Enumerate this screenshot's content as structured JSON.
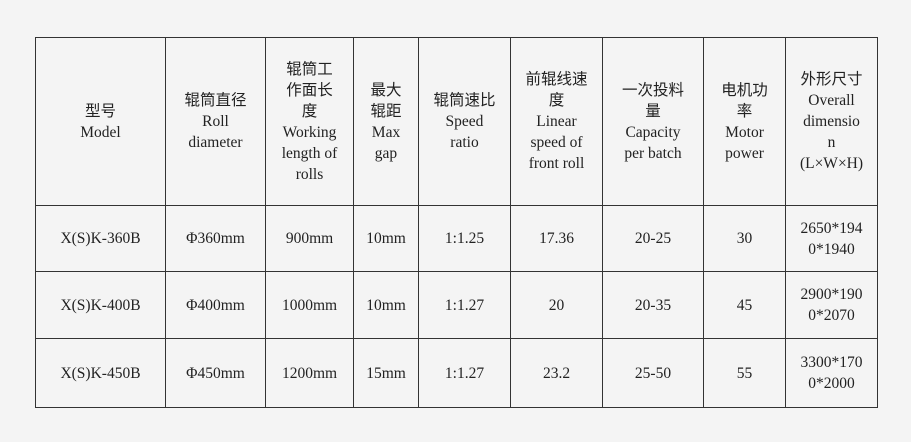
{
  "headers": [
    "型号\nModel",
    "辊筒直径\nRoll\ndiameter",
    "辊筒工\n作面长\n度\nWorking\nlength of\nrolls",
    "最大\n辊距\nMax\ngap",
    "辊筒速比\nSpeed\nratio",
    "前辊线速\n度\nLinear\nspeed of\nfront roll",
    "一次投料\n量\nCapacity\nper batch",
    "电机功\n率\nMotor\npower",
    "外形尺寸\nOverall\ndimensio\nn\n(L×W×H)"
  ],
  "rows": [
    [
      "X(S)K-360B",
      "Φ360mm",
      "900mm",
      "10mm",
      "1:1.25",
      "17.36",
      "20-25",
      "30",
      "2650*194\n0*1940"
    ],
    [
      "X(S)K-400B",
      "Φ400mm",
      "1000mm",
      "10mm",
      "1:1.27",
      "20",
      "20-35",
      "45",
      "2900*190\n0*2070"
    ],
    [
      "X(S)K-450B",
      "Φ450mm",
      "1200mm",
      "15mm",
      "1:1.27",
      "23.2",
      "25-50",
      "55",
      "3300*170\n0*2000"
    ]
  ]
}
